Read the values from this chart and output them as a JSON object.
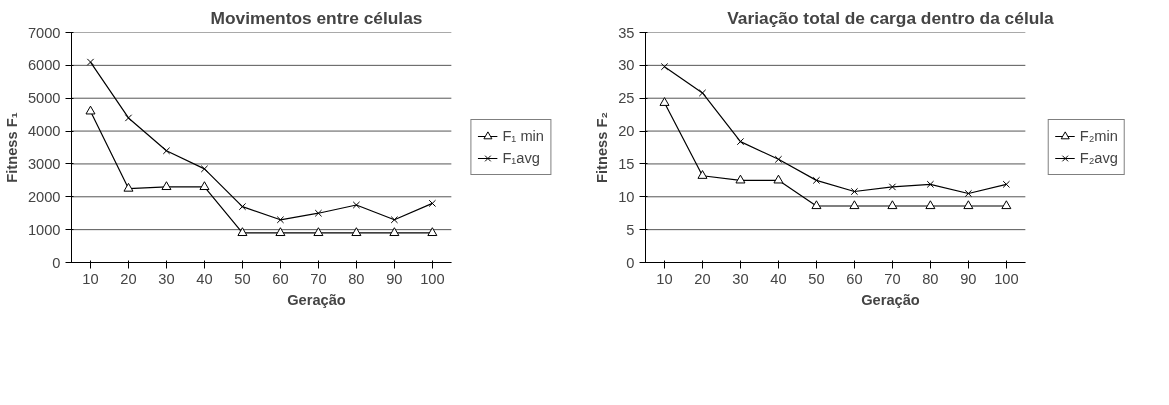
{
  "chart_data": [
    {
      "type": "line",
      "title": "Movimentos entre células",
      "xlabel": "Geração",
      "ylabel": "Fitness F₁",
      "categories": [
        "10",
        "20",
        "30",
        "40",
        "50",
        "60",
        "70",
        "80",
        "90",
        "100"
      ],
      "series": [
        {
          "name": "F₁ min",
          "color": "#000000",
          "marker": "triangle",
          "values": [
            4600,
            2250,
            2300,
            2300,
            900,
            900,
            900,
            900,
            900,
            900
          ]
        },
        {
          "name": "F₁avg",
          "color": "#000000",
          "marker": "cross",
          "values": [
            6100,
            4400,
            3400,
            2850,
            1700,
            1300,
            1500,
            1750,
            1300,
            1800
          ]
        }
      ],
      "ylim": [
        0,
        7000
      ],
      "yticks": [
        0,
        1000,
        2000,
        3000,
        4000,
        5000,
        6000,
        7000
      ],
      "grid": "y",
      "legend": "right"
    },
    {
      "type": "line",
      "title": "Variação total de carga dentro da célula",
      "xlabel": "Geração",
      "ylabel": "Fitness F₂",
      "categories": [
        "10",
        "20",
        "30",
        "40",
        "50",
        "60",
        "70",
        "80",
        "90",
        "100"
      ],
      "series": [
        {
          "name": "F₂min",
          "color": "#000000",
          "marker": "triangle",
          "values": [
            24.3,
            13.2,
            12.5,
            12.5,
            8.6,
            8.6,
            8.6,
            8.6,
            8.6,
            8.6
          ]
        },
        {
          "name": "F₂avg",
          "color": "#000000",
          "marker": "cross",
          "values": [
            29.8,
            25.8,
            18.4,
            15.7,
            12.5,
            10.8,
            11.5,
            11.9,
            10.5,
            11.9
          ]
        }
      ],
      "ylim": [
        0,
        35
      ],
      "yticks": [
        0,
        5,
        10,
        15,
        20,
        25,
        30,
        35
      ],
      "grid": "y",
      "legend": "right"
    }
  ]
}
